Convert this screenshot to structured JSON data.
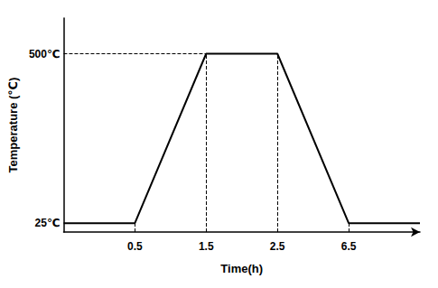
{
  "chart_data": {
    "type": "line",
    "xlabel": "Time(h)",
    "ylabel": "Temperature (℃)",
    "categories": [
      null,
      "0.5",
      "1.5",
      "2.5",
      "6.5",
      null
    ],
    "values": [
      25,
      25,
      500,
      500,
      25,
      25
    ],
    "color": "#000000",
    "line_style": "solid",
    "ylim": [
      0,
      600
    ],
    "yticks": [
      {
        "value": 25,
        "label": "25℃"
      },
      {
        "value": 500,
        "label": "500℃"
      }
    ],
    "grid": false
  }
}
